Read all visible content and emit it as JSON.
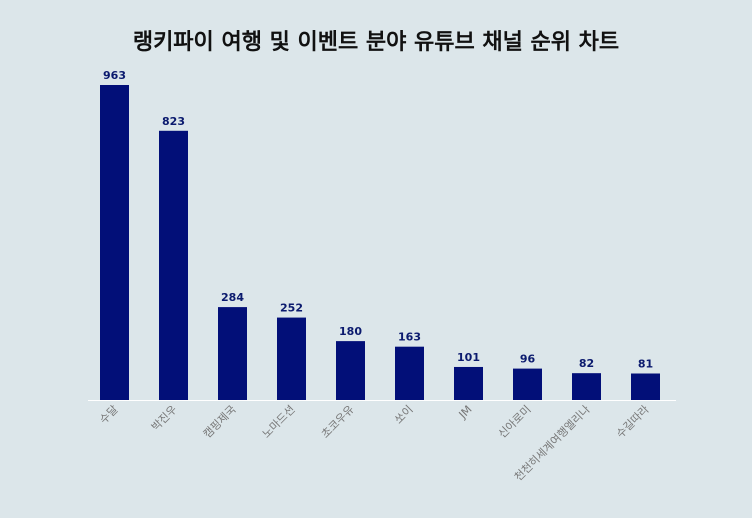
{
  "chart_data": {
    "type": "bar",
    "title": "랭키파이 여행 및 이벤트 분야 유튜브 채널 순위 차트",
    "categories": [
      "수달",
      "박진우",
      "캠핑제국",
      "노마드션",
      "초코우유",
      "쏘이",
      "JM",
      "신아로미",
      "천천히세계여행엘리나",
      "수길따라"
    ],
    "values": [
      963,
      823,
      284,
      252,
      180,
      163,
      101,
      96,
      82,
      81
    ],
    "xlabel": "",
    "ylabel": "",
    "ylim": [
      0,
      1000
    ],
    "grid": false,
    "legend": "none"
  },
  "colors": {
    "background": "#dce6ea",
    "bar": "#020f78",
    "value_label": "#0b1a6e",
    "tick_label": "#777777",
    "axis_line": "#ffffff"
  }
}
